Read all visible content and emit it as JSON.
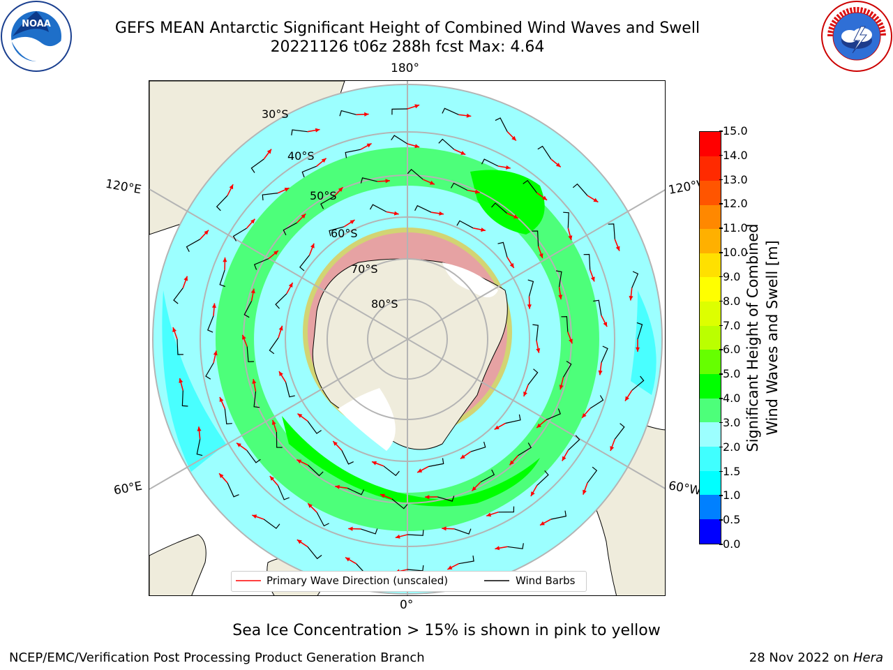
{
  "header": {
    "title_line1": "GEFS MEAN Antarctic Significant Height of Combined Wind Waves and Swell",
    "title_line2": "20221126 t06z 288h fcst   Max: 4.64"
  },
  "logos": {
    "left": "noaa-logo",
    "left_text": "NOAA",
    "left_ring_text": "NATIONAL OCEANIC AND ATMOSPHERIC ADMINISTRATION · U.S. DEPARTMENT OF COMMERCE",
    "right": "nws-logo",
    "right_ring_text": "NATIONAL WEATHER SERVICE"
  },
  "map": {
    "projection": "south-polar-stereographic",
    "lon_labels": {
      "top": "180°",
      "bottom": "0°",
      "upper_left": "120°E",
      "lower_left": "60°E",
      "upper_right": "120°W",
      "lower_right": "60°W"
    },
    "lat_labels": [
      "30°S",
      "40°S",
      "50°S",
      "60°S",
      "70°S",
      "80°S"
    ],
    "legend": {
      "wave_direction": "Primary Wave Direction (unscaled)",
      "wind_barbs": "Wind Barbs"
    },
    "colors": {
      "land": "#efecdc",
      "graticule": "#b4b4b4",
      "arrow": "#ff0000",
      "barb": "#000000"
    }
  },
  "colorbar": {
    "label_line1": "Significant Height of Combined",
    "label_line2": "Wind Waves and Swell [m]",
    "ticks": [
      "0.0",
      "0.5",
      "1.0",
      "1.5",
      "2.0",
      "3.0",
      "4.0",
      "5.0",
      "6.0",
      "7.0",
      "8.0",
      "9.0",
      "10.0",
      "11.0",
      "12.0",
      "13.0",
      "14.0",
      "15.0"
    ],
    "colors": [
      "#0000ff",
      "#0080ff",
      "#00ffff",
      "#40ffff",
      "#9cffff",
      "#4dff7a",
      "#00ff00",
      "#66ff00",
      "#bbff00",
      "#ddff00",
      "#ffff00",
      "#ffe000",
      "#ffb000",
      "#ff8800",
      "#ff5500",
      "#ff2a00",
      "#ff0000"
    ]
  },
  "note": "Sea Ice Concentration > 15% is shown in pink to yellow",
  "footer": {
    "left": "NCEP/EMC/Verification Post Processing Product Generation Branch",
    "right_prefix": "28 Nov 2022 on ",
    "right_host": "Hera"
  }
}
